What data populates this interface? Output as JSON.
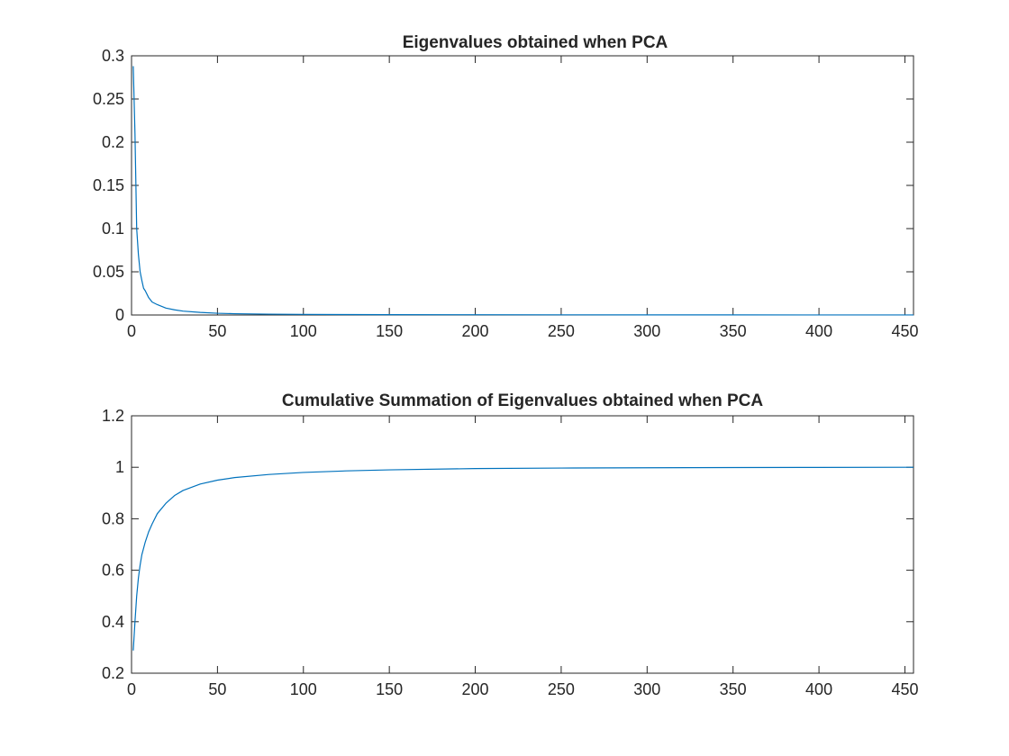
{
  "chart_data": [
    {
      "type": "line",
      "title": "Eigenvalues obtained when PCA",
      "xlabel": "",
      "ylabel": "",
      "xlim": [
        0,
        455
      ],
      "ylim": [
        0,
        0.3
      ],
      "xticks": [
        0,
        50,
        100,
        150,
        200,
        250,
        300,
        350,
        400,
        450
      ],
      "yticks": [
        0,
        0.05,
        0.1,
        0.15,
        0.2,
        0.25,
        0.3
      ],
      "xtick_labels": [
        "0",
        "50",
        "100",
        "150",
        "200",
        "250",
        "300",
        "350",
        "400",
        "450"
      ],
      "ytick_labels": [
        "0",
        "0.05",
        "0.1",
        "0.15",
        "0.2",
        "0.25",
        "0.3"
      ],
      "grid": false,
      "color": "#0072BD",
      "series": [
        {
          "x": [
            1,
            2,
            3,
            4,
            5,
            6,
            7,
            8,
            10,
            12,
            15,
            20,
            25,
            30,
            40,
            50,
            60,
            80,
            100,
            125,
            150,
            200,
            250,
            300,
            350,
            400,
            455
          ],
          "y": [
            0.288,
            0.21,
            0.1,
            0.07,
            0.05,
            0.04,
            0.031,
            0.028,
            0.02,
            0.015,
            0.012,
            0.008,
            0.006,
            0.0045,
            0.003,
            0.002,
            0.0015,
            0.001,
            0.0007,
            0.0005,
            0.0004,
            0.0003,
            0.0002,
            0.00015,
            0.0001,
            8e-05,
            5e-05
          ]
        }
      ]
    },
    {
      "type": "line",
      "title": "Cumulative Summation of Eigenvalues obtained when PCA",
      "xlabel": "",
      "ylabel": "",
      "xlim": [
        0,
        455
      ],
      "ylim": [
        0.2,
        1.2
      ],
      "xticks": [
        0,
        50,
        100,
        150,
        200,
        250,
        300,
        350,
        400,
        450
      ],
      "yticks": [
        0.2,
        0.4,
        0.6,
        0.8,
        1.0,
        1.2
      ],
      "xtick_labels": [
        "0",
        "50",
        "100",
        "150",
        "200",
        "250",
        "300",
        "350",
        "400",
        "450"
      ],
      "ytick_labels": [
        "0.2",
        "0.4",
        "0.6",
        "0.8",
        "1",
        "1.2"
      ],
      "grid": false,
      "color": "#0072BD",
      "series": [
        {
          "x": [
            1,
            2,
            3,
            4,
            5,
            6,
            8,
            10,
            12,
            15,
            20,
            25,
            30,
            40,
            50,
            60,
            80,
            100,
            125,
            150,
            200,
            250,
            300,
            350,
            400,
            455
          ],
          "y": [
            0.288,
            0.4,
            0.5,
            0.57,
            0.62,
            0.66,
            0.71,
            0.75,
            0.78,
            0.82,
            0.86,
            0.89,
            0.91,
            0.935,
            0.95,
            0.96,
            0.972,
            0.98,
            0.986,
            0.99,
            0.995,
            0.997,
            0.998,
            0.999,
            0.9995,
            1.0
          ]
        }
      ]
    }
  ]
}
